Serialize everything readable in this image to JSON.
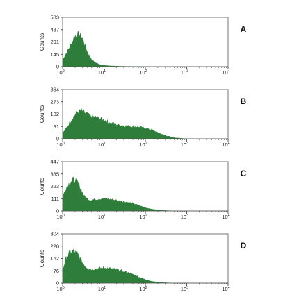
{
  "chart_data": [
    {
      "type": "area",
      "panel_label": "A",
      "ylabel": "Counts",
      "x_scale": "log",
      "xlim": [
        1,
        10000
      ],
      "x_ticks": [
        {
          "base": "10",
          "exp": "0"
        },
        {
          "base": "10",
          "exp": "1"
        },
        {
          "base": "10",
          "exp": "2"
        },
        {
          "base": "10",
          "exp": "3"
        },
        {
          "base": "10",
          "exp": "4"
        }
      ],
      "ylim": [
        0,
        583
      ],
      "y_ticks": [
        "0",
        "145",
        "291",
        "437",
        "583"
      ],
      "fill_color": "#2e7d3a",
      "series": [
        {
          "x": [
            1,
            1.2,
            1.5,
            1.8,
            2.1,
            2.5,
            3.0,
            3.5,
            4.0,
            5.0,
            6.0,
            8.0,
            10,
            13,
            20,
            30,
            50,
            100,
            200,
            1000,
            10000
          ],
          "y": [
            80,
            150,
            240,
            320,
            375,
            385,
            340,
            250,
            170,
            90,
            50,
            25,
            15,
            10,
            6,
            4,
            2,
            1,
            0,
            0,
            0
          ]
        }
      ]
    },
    {
      "type": "area",
      "panel_label": "B",
      "ylabel": "Counts",
      "x_scale": "log",
      "xlim": [
        1,
        10000
      ],
      "x_ticks": [
        {
          "base": "10",
          "exp": "0"
        },
        {
          "base": "10",
          "exp": "1"
        },
        {
          "base": "10",
          "exp": "2"
        },
        {
          "base": "10",
          "exp": "3"
        },
        {
          "base": "10",
          "exp": "4"
        }
      ],
      "ylim": [
        0,
        364
      ],
      "y_ticks": [
        "0",
        "91",
        "182",
        "273",
        "364"
      ],
      "fill_color": "#2e7d3a",
      "series": [
        {
          "x": [
            1,
            1.3,
            1.7,
            2.2,
            2.8,
            3.5,
            4.5,
            6,
            8,
            10,
            13,
            18,
            25,
            35,
            50,
            70,
            100,
            150,
            200,
            300,
            500,
            1000,
            10000
          ],
          "y": [
            40,
            90,
            150,
            195,
            210,
            190,
            170,
            160,
            150,
            140,
            125,
            110,
            100,
            95,
            92,
            88,
            80,
            65,
            45,
            25,
            8,
            0,
            0
          ]
        }
      ]
    },
    {
      "type": "area",
      "panel_label": "C",
      "ylabel": "Counts",
      "x_scale": "log",
      "xlim": [
        1,
        10000
      ],
      "x_ticks": [
        {
          "base": "10",
          "exp": "0"
        },
        {
          "base": "10",
          "exp": "1"
        },
        {
          "base": "10",
          "exp": "2"
        },
        {
          "base": "10",
          "exp": "3"
        },
        {
          "base": "10",
          "exp": "4"
        }
      ],
      "ylim": [
        0,
        447
      ],
      "y_ticks": [
        "0",
        "111",
        "223",
        "335",
        "447"
      ],
      "fill_color": "#2e7d3a",
      "series": [
        {
          "x": [
            1,
            1.2,
            1.5,
            1.8,
            2.2,
            2.6,
            3.0,
            3.5,
            4.2,
            5,
            6,
            8,
            10,
            13,
            18,
            25,
            35,
            50,
            70,
            100,
            150,
            250,
            400,
            1000,
            10000
          ],
          "y": [
            120,
            210,
            260,
            285,
            270,
            225,
            170,
            125,
            105,
            100,
            105,
            110,
            112,
            108,
            100,
            92,
            82,
            70,
            50,
            30,
            15,
            6,
            2,
            0,
            0
          ]
        }
      ]
    },
    {
      "type": "area",
      "panel_label": "D",
      "ylabel": "Counts",
      "x_scale": "log",
      "xlim": [
        1,
        10000
      ],
      "x_ticks": [
        {
          "base": "10",
          "exp": "0"
        },
        {
          "base": "10",
          "exp": "1"
        },
        {
          "base": "10",
          "exp": "2"
        },
        {
          "base": "10",
          "exp": "3"
        },
        {
          "base": "10",
          "exp": "4"
        }
      ],
      "ylim": [
        0,
        304
      ],
      "y_ticks": [
        "0",
        "76",
        "152",
        "228",
        "304"
      ],
      "fill_color": "#2e7d3a",
      "series": [
        {
          "x": [
            1,
            1.2,
            1.5,
            1.8,
            2.2,
            2.6,
            3.0,
            3.5,
            4.2,
            5,
            6,
            8,
            10,
            13,
            18,
            25,
            35,
            50,
            70,
            100,
            150,
            250,
            400,
            1000,
            10000
          ],
          "y": [
            80,
            150,
            190,
            200,
            185,
            160,
            130,
            105,
            90,
            85,
            88,
            92,
            95,
            92,
            85,
            78,
            68,
            55,
            38,
            22,
            10,
            4,
            1,
            0,
            0
          ]
        }
      ]
    }
  ]
}
